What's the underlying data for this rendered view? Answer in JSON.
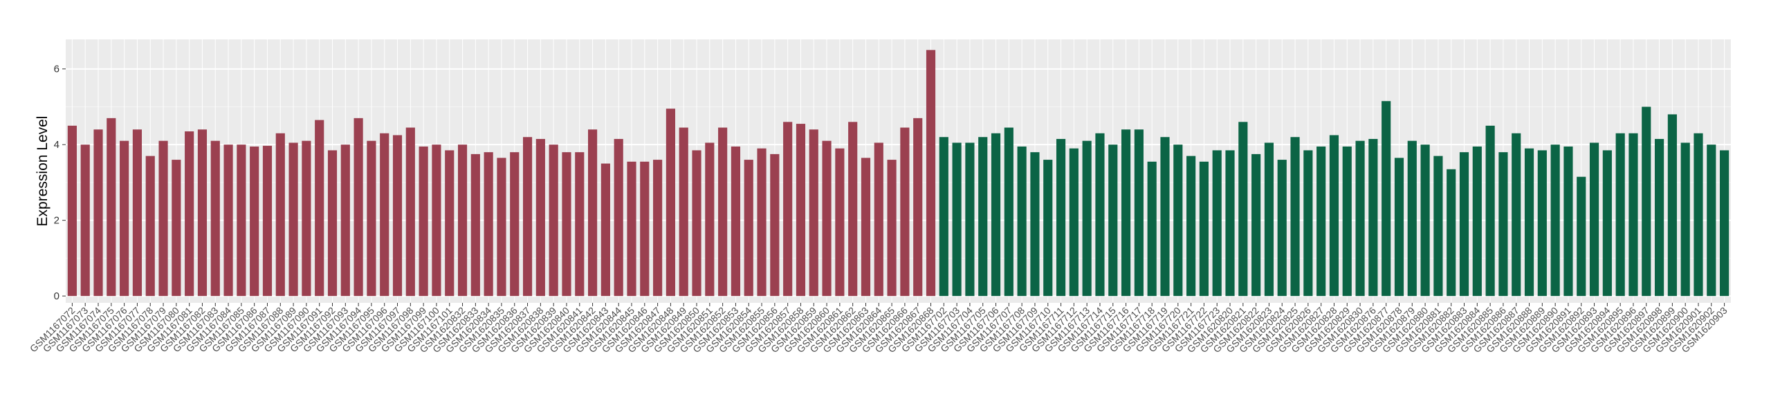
{
  "chart_data": {
    "type": "bar",
    "y_label": "Expression Level",
    "ylim": [
      -0.18,
      6.78
    ],
    "yticks": [
      0,
      2,
      4,
      6
    ],
    "y_minor_ticks": [
      1,
      3,
      5
    ],
    "grid": true,
    "series": [
      {
        "color": "#9b4050",
        "categories": [
          "GSM1167072",
          "GSM1167073",
          "GSM1167074",
          "GSM1167075",
          "GSM1167076",
          "GSM1167077",
          "GSM1167078",
          "GSM1167079",
          "GSM1167080",
          "GSM1167081",
          "GSM1167082",
          "GSM1167083",
          "GSM1167084",
          "GSM1167085",
          "GSM1167086",
          "GSM1167087",
          "GSM1167088",
          "GSM1167089",
          "GSM1167090",
          "GSM1167091",
          "GSM1167092",
          "GSM1167093",
          "GSM1167094",
          "GSM1167095",
          "GSM1167096",
          "GSM1167097",
          "GSM1167098",
          "GSM1167099",
          "GSM1167100",
          "GSM1167101",
          "GSM1620832",
          "GSM1620833",
          "GSM1620834",
          "GSM1620835",
          "GSM1620836",
          "GSM1620837",
          "GSM1620838",
          "GSM1620839",
          "GSM1620840",
          "GSM1620841",
          "GSM1620842",
          "GSM1620843",
          "GSM1620844",
          "GSM1620845",
          "GSM1620846",
          "GSM1620847",
          "GSM1620848",
          "GSM1620849",
          "GSM1620850",
          "GSM1620851",
          "GSM1620852",
          "GSM1620853",
          "GSM1620854",
          "GSM1620855",
          "GSM1620856",
          "GSM1620857",
          "GSM1620858",
          "GSM1620859",
          "GSM1620860",
          "GSM1620861",
          "GSM1620862",
          "GSM1620863",
          "GSM1620864",
          "GSM1620865",
          "GSM1620866",
          "GSM1620867",
          "GSM1620868"
        ],
        "values": [
          4.5,
          4.0,
          4.4,
          4.7,
          4.1,
          4.4,
          3.7,
          4.1,
          3.6,
          4.35,
          4.4,
          4.1,
          4.0,
          4.0,
          3.95,
          3.97,
          4.3,
          4.05,
          4.1,
          4.65,
          3.85,
          4.0,
          4.7,
          4.1,
          4.3,
          4.25,
          4.45,
          3.95,
          4.0,
          3.85,
          4.0,
          3.75,
          3.8,
          3.65,
          3.8,
          4.2,
          4.15,
          4.0,
          3.8,
          3.8,
          4.4,
          3.5,
          4.15,
          3.55,
          3.55,
          3.6,
          4.95,
          4.45,
          3.85,
          4.05,
          4.45,
          3.95,
          3.6,
          3.9,
          3.75,
          4.6,
          4.55,
          4.4,
          4.1,
          3.9,
          4.6,
          3.65,
          4.05,
          3.6,
          4.45,
          4.7,
          6.5
        ]
      },
      {
        "color": "#0b6445",
        "categories": [
          "GSM1167702",
          "GSM1167703",
          "GSM1167704",
          "GSM1167705",
          "GSM1167706",
          "GSM1167707",
          "GSM1167708",
          "GSM1167709",
          "GSM1167710",
          "GSM1167711",
          "GSM1167712",
          "GSM1167713",
          "GSM1167714",
          "GSM1167715",
          "GSM1167716",
          "GSM1167717",
          "GSM1167718",
          "GSM1167719",
          "GSM1167720",
          "GSM1167721",
          "GSM1167722",
          "GSM1167723",
          "GSM1620820",
          "GSM1620821",
          "GSM1620822",
          "GSM1620823",
          "GSM1620824",
          "GSM1620825",
          "GSM1620826",
          "GSM1620827",
          "GSM1620828",
          "GSM1620829",
          "GSM1620830",
          "GSM1620876",
          "GSM1620877",
          "GSM1620878",
          "GSM1620879",
          "GSM1620880",
          "GSM1620881",
          "GSM1620882",
          "GSM1620883",
          "GSM1620884",
          "GSM1620885",
          "GSM1620886",
          "GSM1620887",
          "GSM1620888",
          "GSM1620889",
          "GSM1620890",
          "GSM1620891",
          "GSM1620892",
          "GSM1620893",
          "GSM1620894",
          "GSM1620895",
          "GSM1620896",
          "GSM1620897",
          "GSM1620898",
          "GSM1620899",
          "GSM1620900",
          "GSM1620901",
          "GSM1620902",
          "GSM1620903"
        ],
        "values": [
          4.2,
          4.05,
          4.05,
          4.2,
          4.3,
          4.45,
          3.95,
          3.8,
          3.6,
          4.15,
          3.9,
          4.1,
          4.3,
          4.0,
          4.4,
          4.4,
          3.55,
          4.2,
          4.0,
          3.7,
          3.55,
          3.85,
          3.85,
          4.6,
          3.75,
          4.05,
          3.6,
          4.2,
          3.85,
          3.95,
          4.25,
          3.95,
          4.1,
          4.15,
          5.15,
          3.65,
          4.1,
          4.0,
          3.7,
          3.35,
          3.8,
          3.95,
          4.5,
          3.8,
          4.3,
          3.9,
          3.85,
          4.0,
          3.95,
          3.15,
          4.05,
          3.85,
          4.3,
          4.3,
          5.0,
          4.15,
          4.8,
          4.05,
          4.3,
          4.0,
          3.85
        ]
      }
    ]
  }
}
